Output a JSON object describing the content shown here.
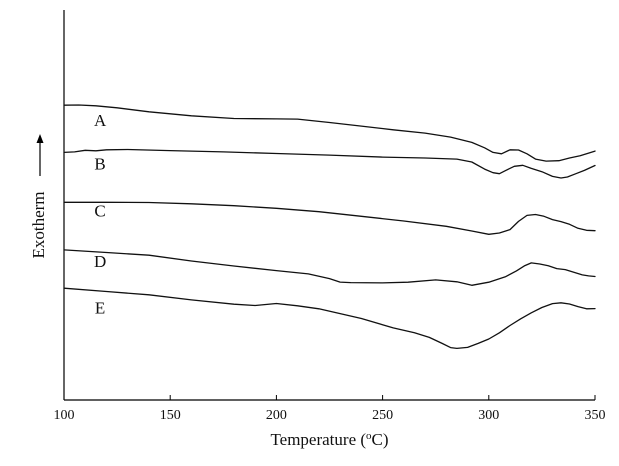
{
  "chart_data": {
    "type": "line",
    "xlabel_main": "Temperature (",
    "xlabel_sup": "o",
    "xlabel_tail": "C)",
    "ylabel": "Exotherm",
    "xlim": [
      100,
      350
    ],
    "x_ticks": [
      100,
      150,
      200,
      250,
      300,
      350
    ],
    "y_ticks_labeled": false,
    "grid": false,
    "series": [
      {
        "name": "A",
        "x": [
          100,
          107,
          115,
          125,
          140,
          160,
          180,
          200,
          210,
          225,
          240,
          255,
          270,
          282,
          292,
          298,
          302,
          306,
          310,
          314,
          318,
          322,
          327,
          333,
          338,
          343,
          347,
          350
        ],
        "y": [
          62.5,
          62.6,
          62.0,
          60.5,
          57.5,
          54.5,
          52.5,
          52.2,
          52.0,
          49.5,
          46.8,
          44.0,
          41.5,
          38.5,
          34.5,
          30.5,
          27.0,
          26.0,
          29.0,
          28.8,
          26.0,
          22.0,
          20.5,
          20.8,
          22.8,
          24.5,
          26.5,
          28.0
        ]
      },
      {
        "name": "B",
        "x": [
          100,
          105,
          110,
          115,
          120,
          130,
          150,
          175,
          200,
          225,
          250,
          270,
          285,
          292,
          298,
          302,
          305,
          308,
          312,
          316,
          320,
          325,
          330,
          334,
          337,
          341,
          345,
          350
        ],
        "y": [
          27.0,
          27.4,
          28.6,
          28.2,
          29.0,
          29.2,
          28.4,
          27.4,
          26.2,
          25.0,
          23.5,
          22.8,
          22.0,
          19.8,
          14.5,
          11.8,
          11.0,
          13.5,
          16.6,
          17.3,
          15.0,
          12.5,
          9.0,
          7.8,
          8.5,
          11.0,
          13.5,
          17.2
        ]
      },
      {
        "name": "C",
        "x": [
          100,
          120,
          140,
          160,
          180,
          200,
          220,
          240,
          260,
          280,
          292,
          300,
          305,
          310,
          314,
          318,
          322,
          326,
          330,
          334,
          338,
          342,
          346,
          350
        ],
        "y": [
          -10.5,
          -10.5,
          -10.6,
          -11.6,
          -13.0,
          -15.0,
          -17.5,
          -21.0,
          -24.5,
          -28.5,
          -32.0,
          -34.5,
          -33.5,
          -31.0,
          -24.8,
          -20.3,
          -19.6,
          -21.0,
          -23.5,
          -25.0,
          -27.0,
          -30.0,
          -31.5,
          -31.8
        ]
      },
      {
        "name": "D",
        "x": [
          100,
          120,
          140,
          160,
          180,
          200,
          215,
          225,
          230,
          235,
          250,
          262,
          275,
          285,
          292,
          300,
          308,
          313,
          317,
          320,
          324,
          328,
          332,
          336,
          340,
          344,
          347,
          350
        ],
        "y": [
          -46.2,
          -48.2,
          -50.2,
          -54.6,
          -58.3,
          -61.8,
          -64.3,
          -67.8,
          -70.4,
          -70.8,
          -71.0,
          -70.5,
          -68.8,
          -70.2,
          -72.8,
          -70.5,
          -66.3,
          -62.0,
          -58.0,
          -56.0,
          -56.8,
          -58.2,
          -60.3,
          -61.0,
          -63.0,
          -65.0,
          -65.8,
          -66.2
        ]
      },
      {
        "name": "E",
        "x": [
          100,
          120,
          140,
          160,
          180,
          190,
          200,
          210,
          220,
          240,
          255,
          265,
          272,
          278,
          282,
          285,
          290,
          295,
          300,
          305,
          310,
          315,
          320,
          325,
          330,
          334,
          338,
          342,
          346,
          350
        ],
        "y": [
          -75.0,
          -77.5,
          -80.0,
          -83.8,
          -87.0,
          -88.0,
          -86.5,
          -88.2,
          -90.5,
          -97.8,
          -104.8,
          -108.5,
          -112.0,
          -116.5,
          -119.6,
          -120.2,
          -119.5,
          -116.5,
          -113.2,
          -108.5,
          -103.0,
          -98.0,
          -93.5,
          -89.5,
          -86.6,
          -86.0,
          -86.9,
          -88.8,
          -90.5,
          -90.3
        ]
      }
    ],
    "labels": [
      {
        "text": "A",
        "x": 117,
        "y": 47
      },
      {
        "text": "B",
        "x": 117,
        "y": 14
      },
      {
        "text": "C",
        "x": 117,
        "y": -21
      },
      {
        "text": "D",
        "x": 117,
        "y": -59
      },
      {
        "text": "E",
        "x": 117,
        "y": -94
      }
    ],
    "ylim": [
      -159,
      134
    ]
  }
}
